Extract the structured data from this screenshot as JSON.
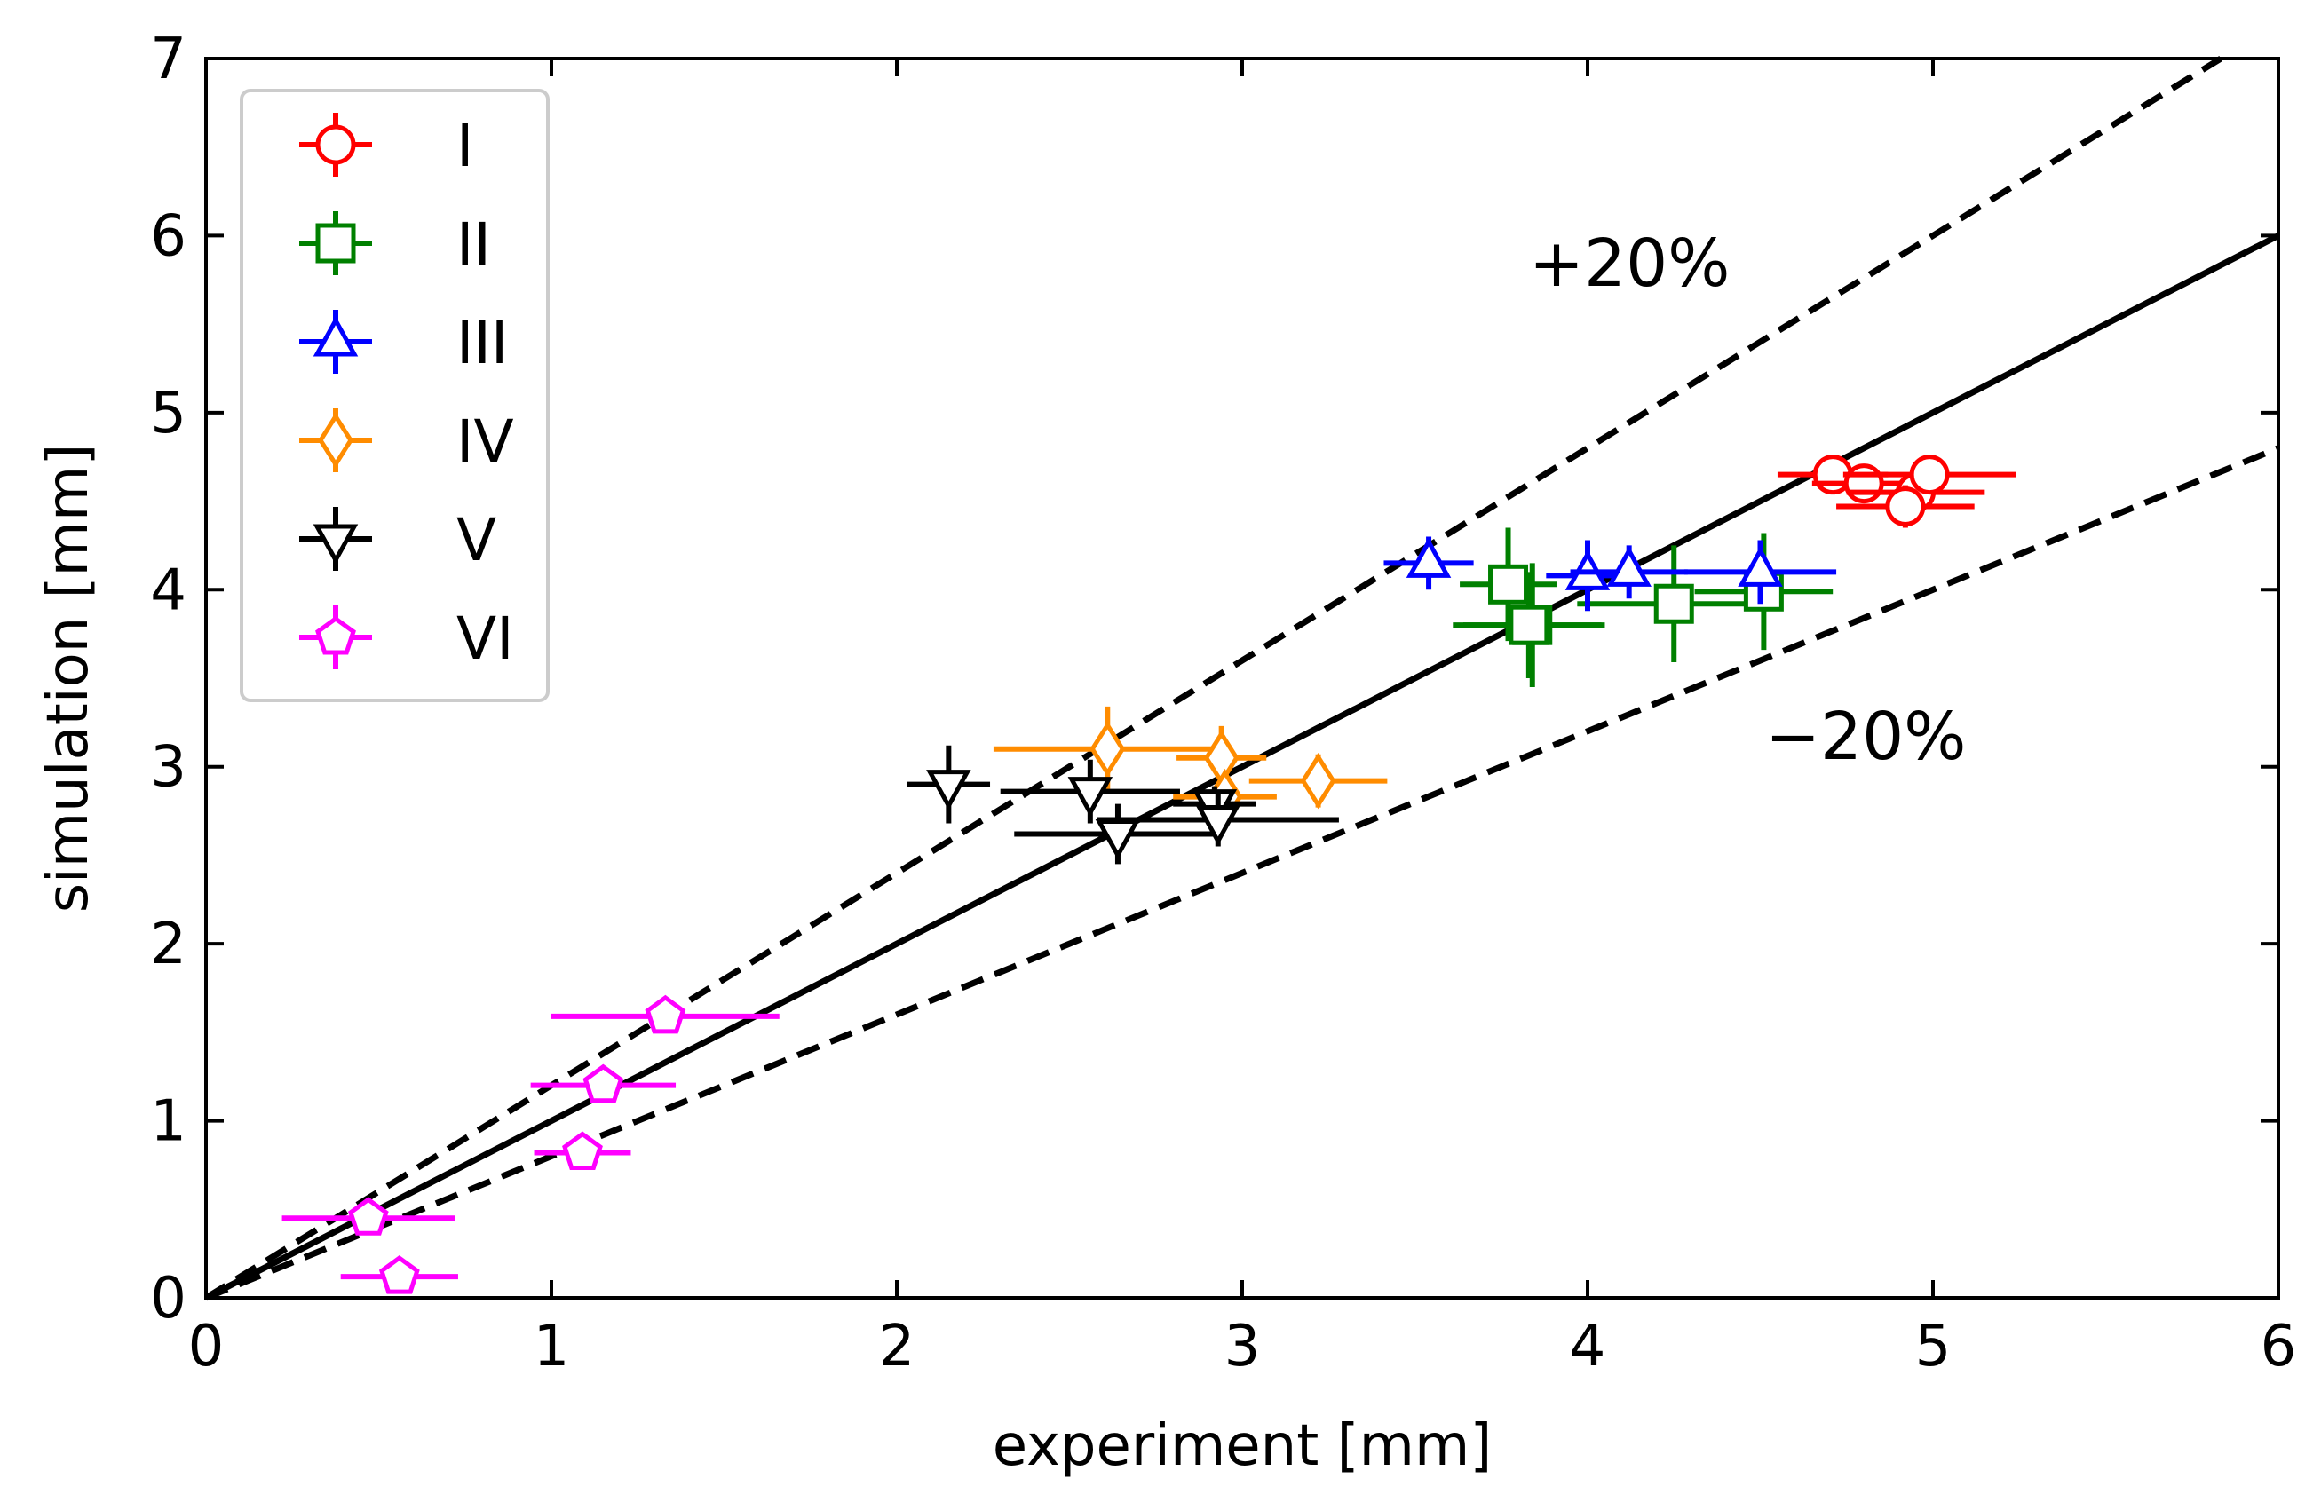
{
  "chart_data": {
    "type": "scatter",
    "title": "",
    "xlabel": "experiment [mm]",
    "ylabel": "simulation [mm]",
    "xlim": [
      0,
      6
    ],
    "ylim": [
      0,
      7
    ],
    "xticks": [
      "0",
      "1",
      "2",
      "3",
      "4",
      "5",
      "6"
    ],
    "yticks": [
      "0",
      "1",
      "2",
      "3",
      "4",
      "5",
      "6",
      "7"
    ],
    "grid": false,
    "legend_position": "top-left",
    "reference_lines": [
      {
        "name": "identity",
        "slope": 1.0,
        "style": "solid",
        "color": "#000000"
      },
      {
        "name": "plus-20",
        "slope": 1.2,
        "style": "dashed",
        "color": "#000000",
        "label": "+20%"
      },
      {
        "name": "minus-20",
        "slope": 0.8,
        "style": "dashed",
        "color": "#000000",
        "label": "−20%"
      }
    ],
    "series": [
      {
        "name": "I",
        "color": "#ff0000",
        "marker": "circle",
        "points": [
          {
            "x": 4.71,
            "y": 4.65,
            "xerr": 0.16,
            "yerr": 0.06
          },
          {
            "x": 4.8,
            "y": 4.6,
            "xerr": 0.15,
            "yerr": 0.06
          },
          {
            "x": 4.95,
            "y": 4.55,
            "xerr": 0.2,
            "yerr": 0.07
          },
          {
            "x": 4.99,
            "y": 4.65,
            "xerr": 0.25,
            "yerr": 0.07
          },
          {
            "x": 4.92,
            "y": 4.47,
            "xerr": 0.2,
            "yerr": 0.12
          }
        ]
      },
      {
        "name": "II",
        "color": "#008000",
        "marker": "square",
        "points": [
          {
            "x": 3.77,
            "y": 4.03,
            "xerr": 0.14,
            "yerr": 0.32
          },
          {
            "x": 3.84,
            "y": 3.8,
            "xerr": 0.2,
            "yerr": 0.35
          },
          {
            "x": 3.83,
            "y": 3.8,
            "xerr": 0.22,
            "yerr": 0.3
          },
          {
            "x": 4.25,
            "y": 3.92,
            "xerr": 0.28,
            "yerr": 0.33
          },
          {
            "x": 4.51,
            "y": 3.99,
            "xerr": 0.2,
            "yerr": 0.33
          }
        ]
      },
      {
        "name": "III",
        "color": "#0000ff",
        "marker": "triangle-up",
        "points": [
          {
            "x": 3.54,
            "y": 4.15,
            "xerr": 0.13,
            "yerr": 0.15
          },
          {
            "x": 4.0,
            "y": 4.08,
            "xerr": 0.12,
            "yerr": 0.2
          },
          {
            "x": 4.12,
            "y": 4.1,
            "xerr": 0.17,
            "yerr": 0.15
          },
          {
            "x": 4.5,
            "y": 4.1,
            "xerr": 0.22,
            "yerr": 0.18
          }
        ]
      },
      {
        "name": "IV",
        "color": "#ff8c00",
        "marker": "diamond",
        "points": [
          {
            "x": 2.61,
            "y": 3.1,
            "xerr": 0.33,
            "yerr": 0.24
          },
          {
            "x": 2.94,
            "y": 3.05,
            "xerr": 0.13,
            "yerr": 0.18
          },
          {
            "x": 3.22,
            "y": 2.92,
            "xerr": 0.2,
            "yerr": 0.15
          },
          {
            "x": 2.95,
            "y": 2.83,
            "xerr": 0.15,
            "yerr": 0.12
          }
        ]
      },
      {
        "name": "V",
        "color": "#000000",
        "marker": "triangle-down",
        "points": [
          {
            "x": 2.15,
            "y": 2.9,
            "xerr": 0.12,
            "yerr": 0.22
          },
          {
            "x": 2.56,
            "y": 2.86,
            "xerr": 0.26,
            "yerr": 0.18
          },
          {
            "x": 2.64,
            "y": 2.62,
            "xerr": 0.3,
            "yerr": 0.17
          },
          {
            "x": 2.92,
            "y": 2.79,
            "xerr": 0.12,
            "yerr": 0.1
          },
          {
            "x": 2.93,
            "y": 2.7,
            "xerr": 0.35,
            "yerr": 0.15
          }
        ]
      },
      {
        "name": "VI",
        "color": "#ff00ff",
        "marker": "pentagon",
        "points": [
          {
            "x": 1.33,
            "y": 1.59,
            "xerr": 0.33,
            "yerr": 0.06
          },
          {
            "x": 1.15,
            "y": 1.2,
            "xerr": 0.21,
            "yerr": 0.05
          },
          {
            "x": 1.09,
            "y": 0.82,
            "xerr": 0.14,
            "yerr": 0.05
          },
          {
            "x": 0.47,
            "y": 0.45,
            "xerr": 0.25,
            "yerr": 0.05
          },
          {
            "x": 0.56,
            "y": 0.12,
            "xerr": 0.17,
            "yerr": 0.05
          }
        ]
      }
    ]
  }
}
